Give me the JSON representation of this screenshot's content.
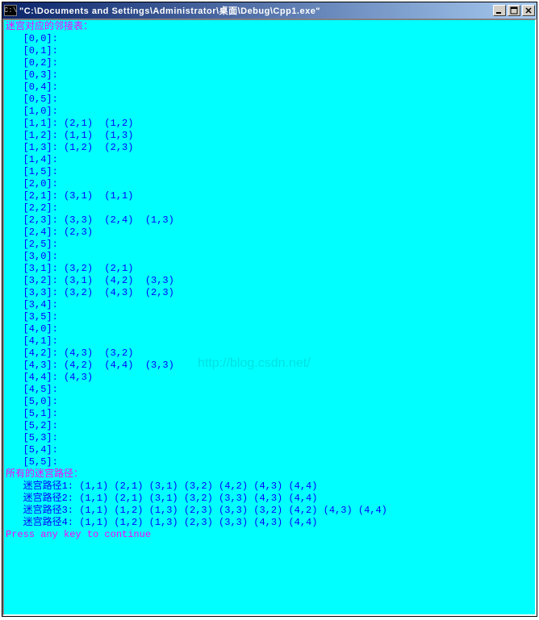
{
  "title": "\"C:\\Documents and Settings\\Administrator\\桌面\\Debug\\Cpp1.exe\"",
  "icon_label": "C:\\",
  "watermark": "http://blog.csdn.net/",
  "headers": {
    "adj": "迷宫对应的邻接表：",
    "paths": "所有的迷宫路径：",
    "prompt": "Press any key to continue"
  },
  "adj_lines": [
    "   [0,0]:",
    "   [0,1]:",
    "   [0,2]:",
    "   [0,3]:",
    "   [0,4]:",
    "   [0,5]:",
    "   [1,0]:",
    "   [1,1]: (2,1)  (1,2)",
    "   [1,2]: (1,1)  (1,3)",
    "   [1,3]: (1,2)  (2,3)",
    "   [1,4]:",
    "   [1,5]:",
    "   [2,0]:",
    "   [2,1]: (3,1)  (1,1)",
    "   [2,2]:",
    "   [2,3]: (3,3)  (2,4)  (1,3)",
    "   [2,4]: (2,3)",
    "   [2,5]:",
    "   [3,0]:",
    "   [3,1]: (3,2)  (2,1)",
    "   [3,2]: (3,1)  (4,2)  (3,3)",
    "   [3,3]: (3,2)  (4,3)  (2,3)",
    "   [3,4]:",
    "   [3,5]:",
    "   [4,0]:",
    "   [4,1]:",
    "   [4,2]: (4,3)  (3,2)",
    "   [4,3]: (4,2)  (4,4)  (3,3)",
    "   [4,4]: (4,3)",
    "   [4,5]:",
    "   [5,0]:",
    "   [5,1]:",
    "   [5,2]:",
    "   [5,3]:",
    "   [5,4]:",
    "   [5,5]:"
  ],
  "path_lines": [
    "   迷宫路径1: (1,1) (2,1) (3,1) (3,2) (4,2) (4,3) (4,4)",
    "   迷宫路径2: (1,1) (2,1) (3,1) (3,2) (3,3) (4,3) (4,4)",
    "   迷宫路径3: (1,1) (1,2) (1,3) (2,3) (3,3) (3,2) (4,2) (4,3) (4,4)",
    "   迷宫路径4: (1,1) (1,2) (1,3) (2,3) (3,3) (4,3) (4,4)"
  ],
  "colors": {
    "console_bg": "#00ffff",
    "text_blue": "#0000ff",
    "text_magenta": "#ff00ff",
    "titlebar_left": "#0a246a",
    "titlebar_right": "#a6caf0"
  }
}
